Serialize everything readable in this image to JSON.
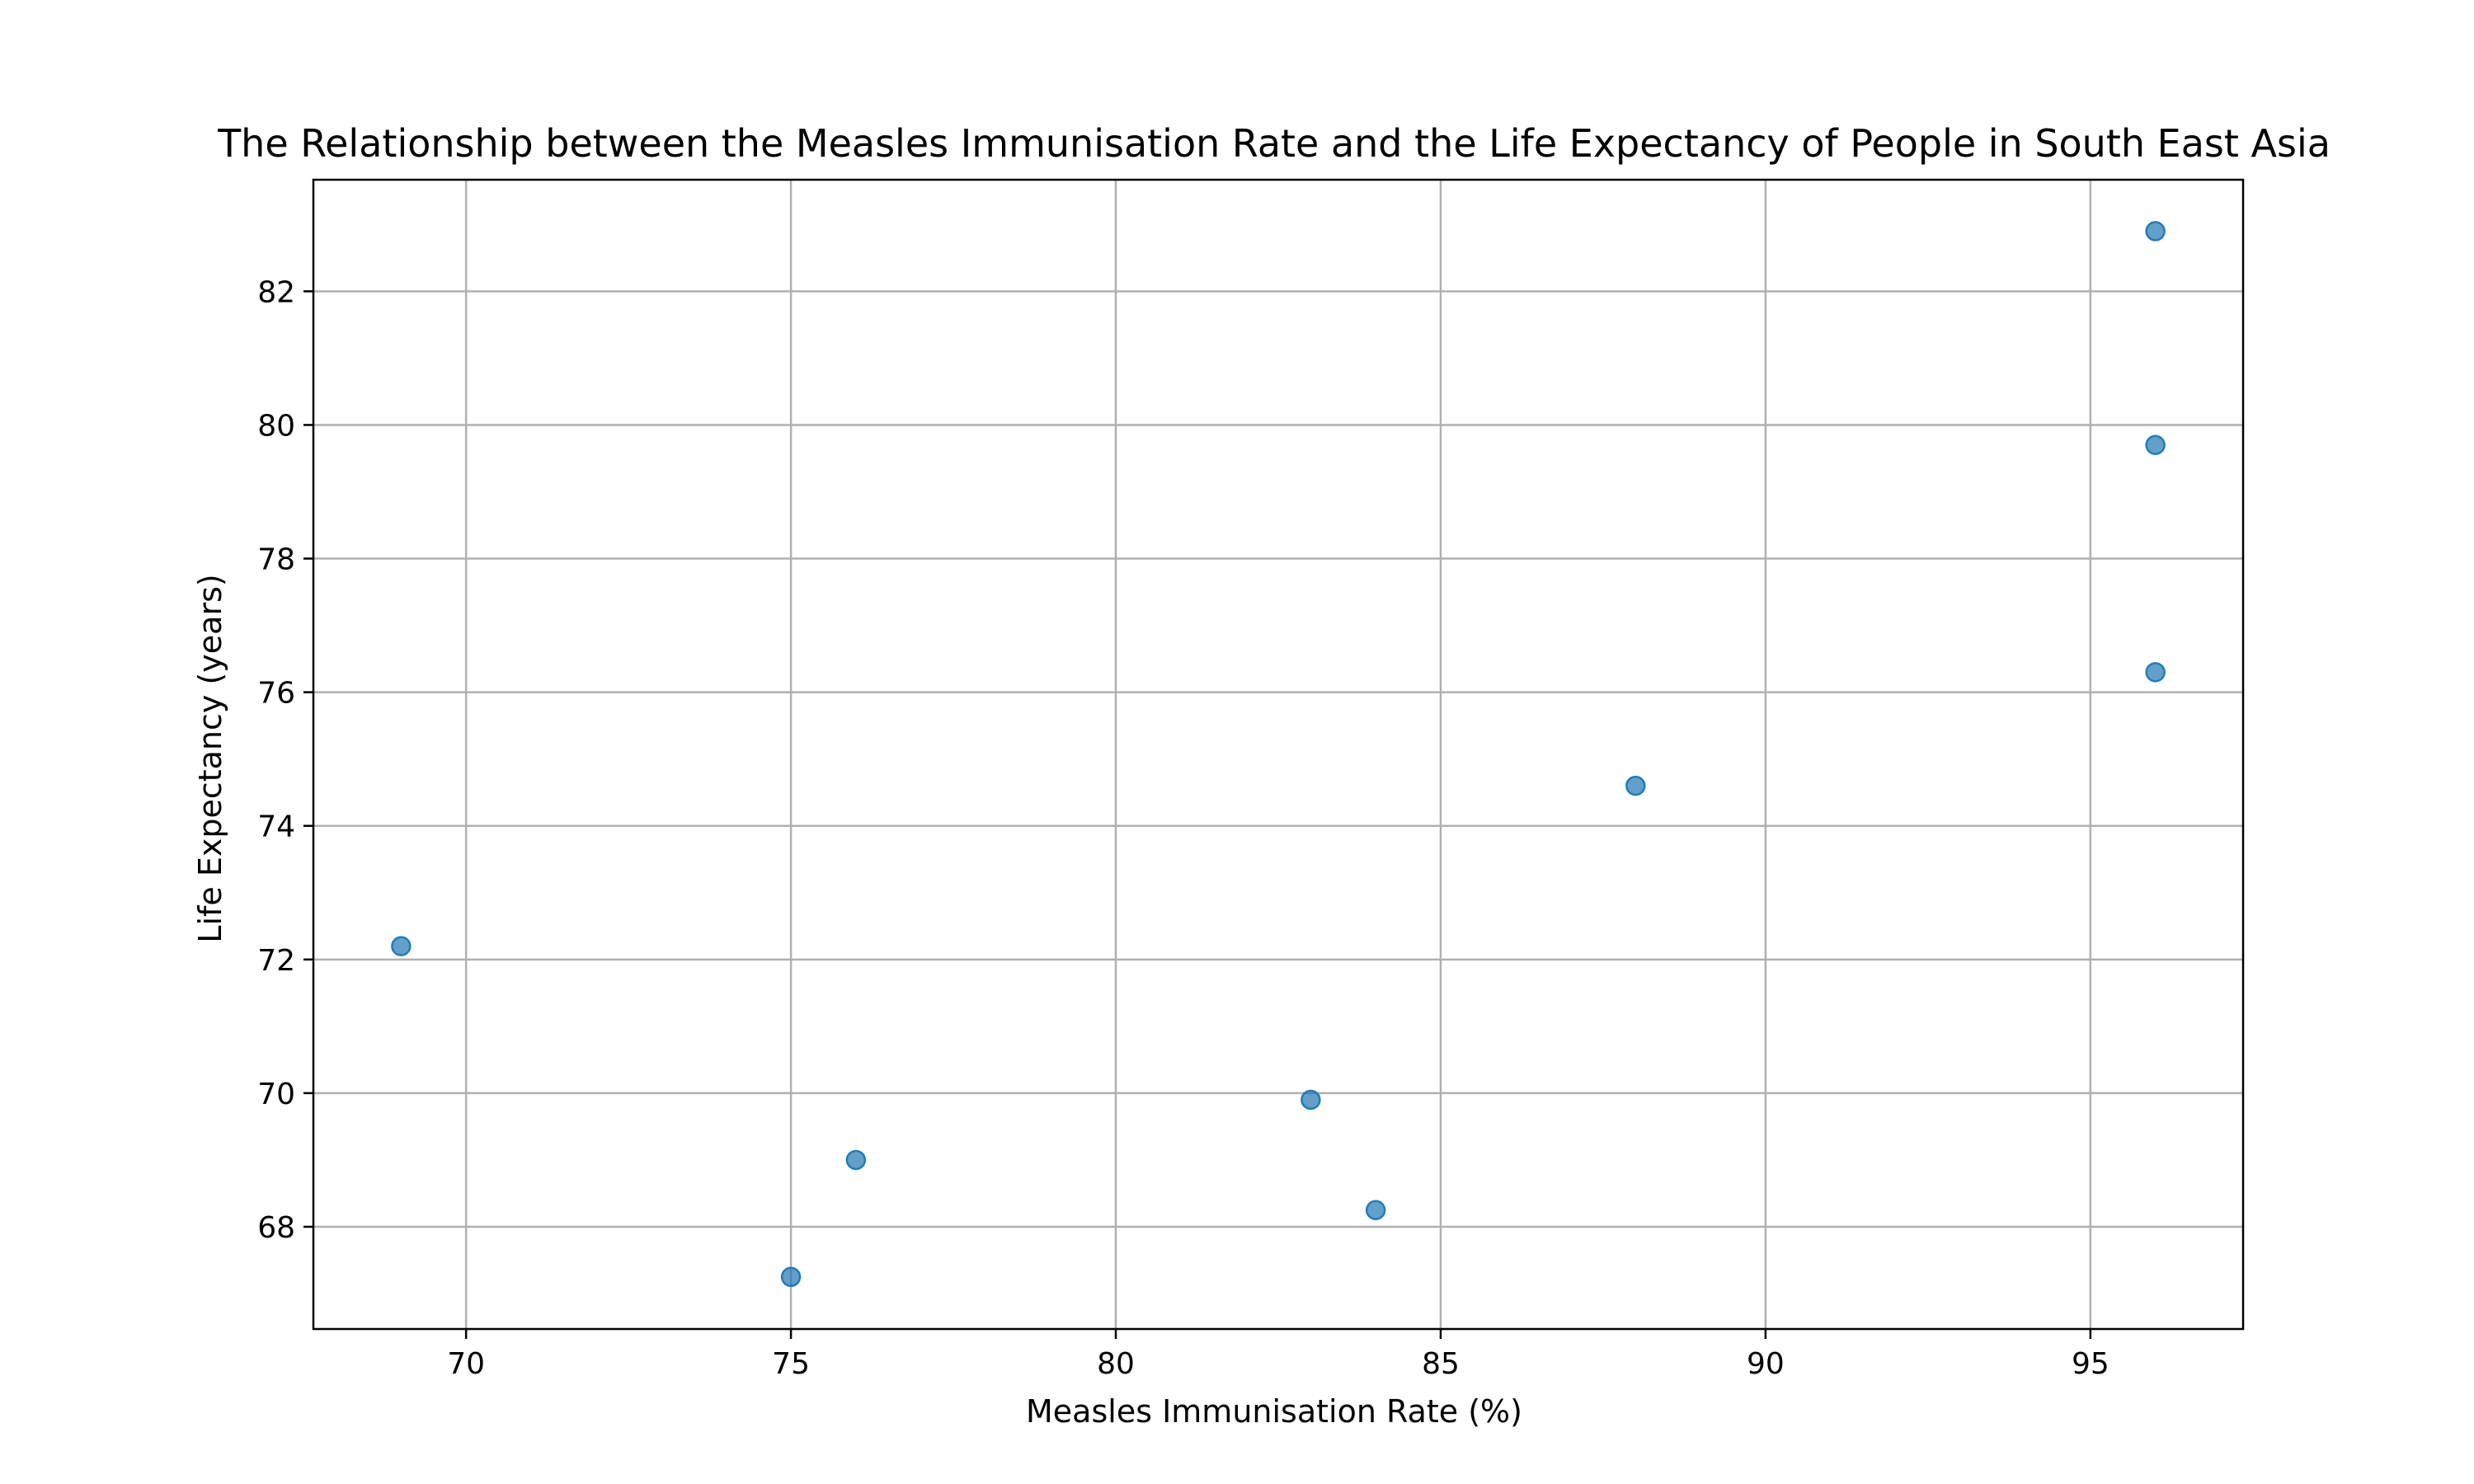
{
  "chart_data": {
    "type": "scatter",
    "title": "The Relationship between the Measles Immunisation Rate and the Life Expectancy of People in South East Asia",
    "xlabel": "Measles Immunisation Rate (%)",
    "ylabel": "Life Expectancy (years)",
    "xlim": [
      67.65,
      97.35
    ],
    "ylim": [
      66.47,
      83.67
    ],
    "x_ticks": [
      70,
      75,
      80,
      85,
      90,
      95
    ],
    "y_ticks": [
      68,
      70,
      72,
      74,
      76,
      78,
      80,
      82
    ],
    "grid": true,
    "legend": "none",
    "point_color": "#1f77b4",
    "point_opacity": 0.7,
    "points": [
      {
        "x": 69,
        "y": 72.2
      },
      {
        "x": 75,
        "y": 67.25
      },
      {
        "x": 76,
        "y": 69.0
      },
      {
        "x": 83,
        "y": 69.9
      },
      {
        "x": 84,
        "y": 68.25
      },
      {
        "x": 88,
        "y": 74.6
      },
      {
        "x": 96,
        "y": 76.3
      },
      {
        "x": 96,
        "y": 79.7
      },
      {
        "x": 96,
        "y": 82.9
      }
    ]
  }
}
